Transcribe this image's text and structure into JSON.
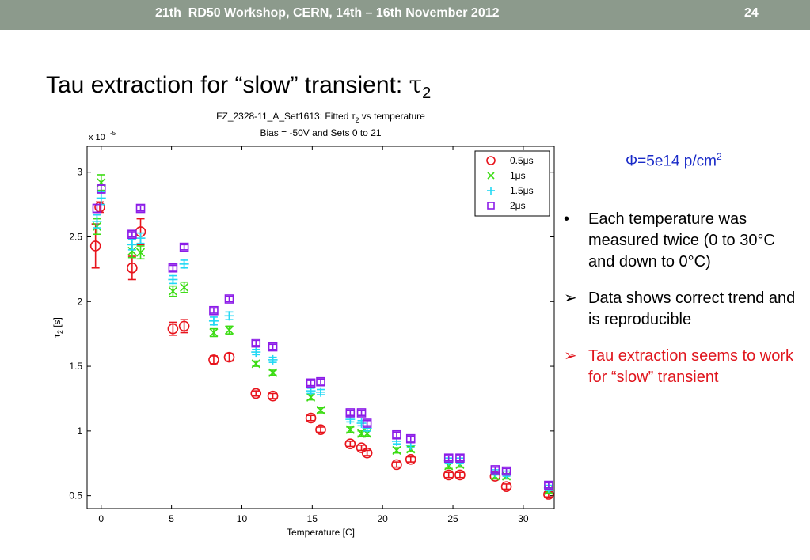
{
  "header": {
    "title": "21th  RD50 Workshop, CERN, 14th – 16th November 2012",
    "page_number": "24"
  },
  "slide": {
    "title_main": "Tau extraction for “slow” transient: ",
    "title_symbol": "τ",
    "title_sub": "2"
  },
  "side_panel": {
    "flux_text": "Φ=5e14 p/cm",
    "flux_sup": "2",
    "bullets": [
      {
        "marker": "•",
        "text": "Each temperature was measured twice (0 to 30°C and down to 0°C)",
        "color": "#000000"
      },
      {
        "marker": "➢",
        "text": "Data shows correct trend and is reproducible",
        "color": "#000000"
      },
      {
        "marker": "➢",
        "text": "Tau extraction seems to work for “slow” transient",
        "color": "#e0161e"
      }
    ]
  },
  "chart_data": {
    "type": "scatter",
    "title_line1_pre": "FZ_2328-11_A_Set1613: Fitted τ",
    "title_line1_sub": "2",
    "title_line1_post": " vs temperature",
    "title_line2": "Bias = -50V and Sets 0 to 21",
    "exponent_label_base": "x 10",
    "exponent_label_sup": "-5",
    "xlabel": "Temperature [C]",
    "ylabel_symbol": "τ",
    "ylabel_sub": "2",
    "ylabel_post": " [s]",
    "xlim": [
      -1,
      32.2
    ],
    "ylim": [
      0.4,
      3.2
    ],
    "xticks": [
      0,
      5,
      10,
      15,
      20,
      25,
      30
    ],
    "yticks": [
      0.5,
      1,
      1.5,
      2,
      2.5,
      3
    ],
    "grid": false,
    "legend_position": "top-right",
    "series": [
      {
        "name": "0.5μs",
        "marker": "circle",
        "color": "#e8141c",
        "x": [
          -0.4,
          -0.1,
          2.2,
          2.8,
          5.1,
          5.9,
          8.0,
          9.1,
          11.0,
          12.2,
          14.9,
          15.6,
          17.7,
          18.5,
          18.9,
          21.0,
          22.0,
          24.7,
          25.5,
          28.0,
          28.8,
          31.8
        ],
        "y": [
          2.43,
          2.73,
          2.26,
          2.54,
          1.79,
          1.81,
          1.55,
          1.57,
          1.29,
          1.27,
          1.1,
          1.01,
          0.9,
          0.87,
          0.83,
          0.74,
          0.78,
          0.66,
          0.66,
          0.65,
          0.57,
          0.51
        ],
        "err": [
          0.17,
          0.04,
          0.09,
          0.1,
          0.05,
          0.05,
          0.03,
          0.03,
          0.02,
          0.02,
          0.02,
          0.02,
          0.02,
          0.02,
          0.02,
          0.02,
          0.02,
          0.02,
          0.02,
          0.02,
          0.02,
          0.02
        ]
      },
      {
        "name": "1μs",
        "marker": "x",
        "color": "#3cdc14",
        "x": [
          -0.3,
          0.0,
          2.2,
          2.8,
          5.1,
          5.9,
          8.0,
          9.1,
          11.0,
          12.2,
          14.9,
          15.6,
          17.7,
          18.5,
          18.9,
          21.0,
          22.0,
          24.7,
          25.5,
          28.0,
          28.8,
          31.8
        ],
        "y": [
          2.58,
          2.92,
          2.39,
          2.38,
          2.08,
          2.11,
          1.76,
          1.78,
          1.52,
          1.45,
          1.26,
          1.16,
          1.01,
          0.98,
          0.98,
          0.85,
          0.86,
          0.73,
          0.74,
          0.65,
          0.65,
          0.54
        ],
        "err": [
          0.06,
          0.06,
          0.05,
          0.05,
          0.04,
          0.04,
          0.03,
          0.03,
          0.02,
          0.02,
          0.02,
          0.02,
          0.02,
          0.02,
          0.02,
          0.02,
          0.02,
          0.02,
          0.02,
          0.02,
          0.02,
          0.02
        ]
      },
      {
        "name": "1.5μs",
        "marker": "plus",
        "color": "#22d8f4",
        "x": [
          -0.3,
          0.0,
          2.2,
          2.8,
          5.1,
          5.9,
          8.0,
          9.1,
          11.0,
          12.2,
          14.9,
          15.6,
          17.7,
          18.5,
          18.9,
          21.0,
          22.0,
          24.7,
          25.5,
          28.0,
          28.8,
          31.8
        ],
        "y": [
          2.62,
          2.8,
          2.44,
          2.49,
          2.17,
          2.29,
          1.85,
          1.89,
          1.61,
          1.55,
          1.31,
          1.3,
          1.09,
          1.06,
          1.02,
          0.92,
          0.89,
          0.77,
          0.77,
          0.68,
          0.67,
          0.56
        ],
        "err": [
          0.05,
          0.05,
          0.04,
          0.04,
          0.03,
          0.03,
          0.03,
          0.03,
          0.02,
          0.02,
          0.02,
          0.02,
          0.02,
          0.02,
          0.02,
          0.02,
          0.02,
          0.02,
          0.02,
          0.02,
          0.02,
          0.02
        ]
      },
      {
        "name": "2μs",
        "marker": "square",
        "color": "#8c1ce8",
        "x": [
          -0.3,
          0.0,
          2.2,
          2.8,
          5.1,
          5.9,
          8.0,
          9.1,
          11.0,
          12.2,
          14.9,
          15.6,
          17.7,
          18.5,
          18.9,
          21.0,
          22.0,
          24.7,
          25.5,
          28.0,
          28.8,
          31.8
        ],
        "y": [
          2.72,
          2.87,
          2.52,
          2.72,
          2.26,
          2.42,
          1.93,
          2.02,
          1.68,
          1.65,
          1.37,
          1.38,
          1.14,
          1.14,
          1.06,
          0.97,
          0.94,
          0.79,
          0.79,
          0.7,
          0.69,
          0.58
        ],
        "err": [
          0.03,
          0.03,
          0.02,
          0.02,
          0.02,
          0.02,
          0.02,
          0.02,
          0.02,
          0.02,
          0.02,
          0.02,
          0.02,
          0.02,
          0.02,
          0.02,
          0.02,
          0.02,
          0.02,
          0.02,
          0.02,
          0.02
        ]
      }
    ]
  }
}
